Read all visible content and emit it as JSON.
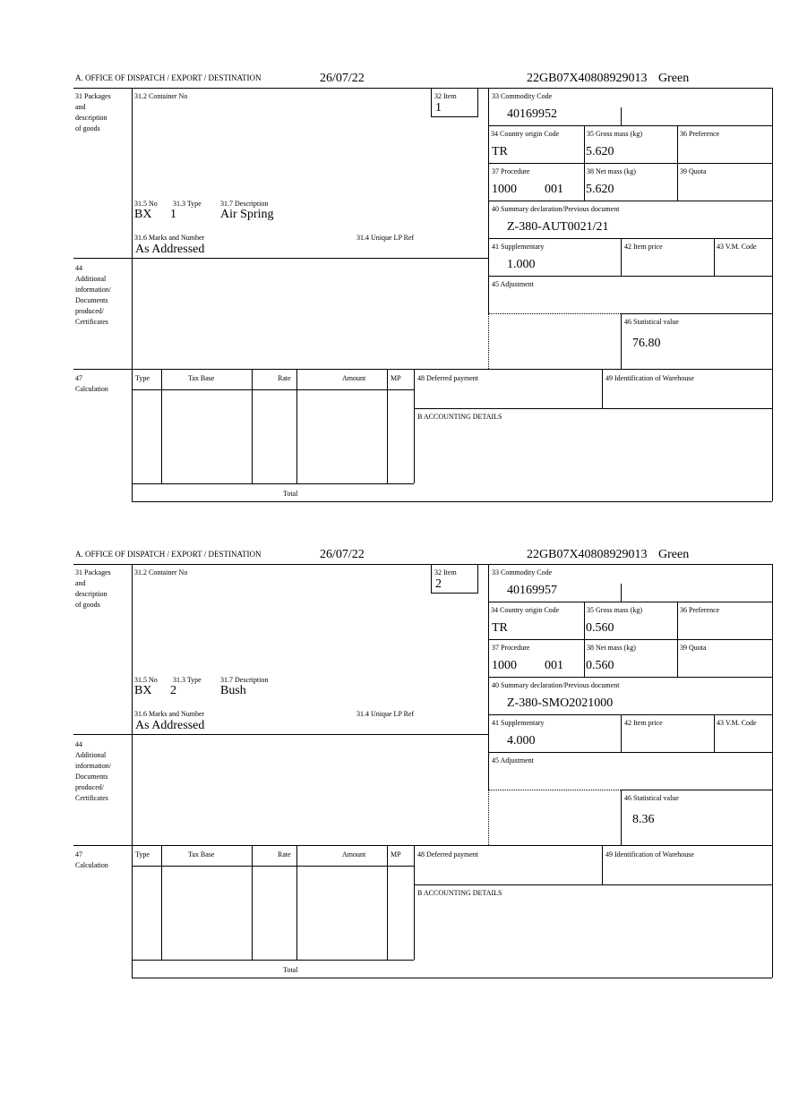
{
  "labels": {
    "office": "A.  OFFICE OF DISPATCH / EXPORT / DESTINATION",
    "packages": [
      "31 Packages",
      "and",
      "description",
      "of goods"
    ],
    "container_no": "31.2 Container No",
    "item": "32 Item",
    "no": "31.5 No",
    "type": "31.3 Type",
    "description": "31.7 Description",
    "marks": "31.6 Marks and Number",
    "unique_ref": "31.4 Unique LP Ref",
    "commodity_code": "33 Commodity Code",
    "country_origin": "34 Country origin Code",
    "gross_mass": "35 Gross mass (kg)",
    "preference": "36 Preference",
    "procedure": "37 Procedure",
    "net_mass": "38 Net mass (kg)",
    "quota": "39 Quota",
    "summary_decl": "40 Summary declaration/Previous document",
    "supplementary": "41 Supplementary",
    "item_price": "42 Item price",
    "vm_code": "43 V.M. Code",
    "additional": [
      "44",
      "Additional",
      "information/",
      "Documents",
      "produced/",
      "Certificates"
    ],
    "adjustment": "45 Adjustment",
    "statistical_value": "46 Statistical value",
    "calculation": [
      "47",
      "Calculation"
    ],
    "calc_cols": [
      "Type",
      "Tax Base",
      "Rate",
      "Amount",
      "MP"
    ],
    "total": "Total",
    "deferred_payment": "48 Deferred payment",
    "warehouse": "49 Identification of Warehouse",
    "accounting": "B ACCOUNTING DETAILS"
  },
  "forms": [
    {
      "date": "26/07/22",
      "reference": "22GB07X40808929013",
      "route": "Green",
      "item": "1",
      "no": "BX",
      "type": "1",
      "description": "Air Spring",
      "marks": "As Addressed",
      "commodity_code": "40169952",
      "country_origin": "TR",
      "gross_mass": "5.620",
      "procedure": "1000",
      "procedure_additional": "001",
      "net_mass": "5.620",
      "summary_decl": "Z-380-AUT0021/21",
      "supplementary": "1.000",
      "statistical_value": "76.80"
    },
    {
      "date": "26/07/22",
      "reference": "22GB07X40808929013",
      "route": "Green",
      "item": "2",
      "no": "BX",
      "type": "2",
      "description": "Bush",
      "marks": "As Addressed",
      "commodity_code": "40169957",
      "country_origin": "TR",
      "gross_mass": "0.560",
      "procedure": "1000",
      "procedure_additional": "001",
      "net_mass": "0.560",
      "summary_decl": "Z-380-SMO2021000",
      "supplementary": "4.000",
      "statistical_value": "8.36"
    }
  ]
}
